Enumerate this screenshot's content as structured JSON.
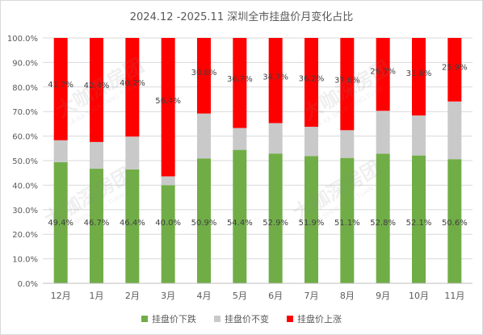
{
  "chart_data": {
    "type": "bar",
    "stacked": true,
    "title": "2024.12  -2025.11 深圳全市挂盘价月变化占比",
    "categories": [
      "12月",
      "1月",
      "2月",
      "3月",
      "4月",
      "5月",
      "6月",
      "7月",
      "8月",
      "9月",
      "10月",
      "11月"
    ],
    "series": [
      {
        "name": "挂盘价下跌",
        "color": "#70ad47",
        "values": [
          49.4,
          46.7,
          46.4,
          40.0,
          50.9,
          54.4,
          52.9,
          51.9,
          51.1,
          52.8,
          52.1,
          50.6
        ],
        "labels": [
          "49.4%",
          "46.7%",
          "46.4%",
          "40.0%",
          "50.9%",
          "54.4%",
          "52.9%",
          "51.9%",
          "51.1%",
          "52.8%",
          "52.1%",
          "50.6%"
        ]
      },
      {
        "name": "挂盘价不变",
        "color": "#c9c9c9",
        "values": [
          8.9,
          10.9,
          13.4,
          3.6,
          18.3,
          8.9,
          12.4,
          11.9,
          11.3,
          17.5,
          16.3,
          23.5
        ]
      },
      {
        "name": "挂盘价上涨",
        "color": "#ff0000",
        "values": [
          41.7,
          42.4,
          40.2,
          56.4,
          30.8,
          36.7,
          34.7,
          36.2,
          37.6,
          29.7,
          31.6,
          25.9
        ],
        "labels": [
          "41.7%",
          "42.4%",
          "40.2%",
          "56.4%",
          "30.8%",
          "36.7%",
          "34.7%",
          "36.2%",
          "37.6%",
          "29.7%",
          "31.6%",
          "25.9%"
        ]
      }
    ],
    "ylim": [
      0,
      100
    ],
    "yticks": [
      "0.0%",
      "10.0%",
      "20.0%",
      "30.0%",
      "40.0%",
      "50.0%",
      "60.0%",
      "70.0%",
      "80.0%",
      "90.0%",
      "100.0%"
    ],
    "grid": true,
    "legend": "bottom",
    "watermark": {
      "text": "大咖深房团",
      "subtext": "DA KA SHEN FANG TUAN"
    }
  }
}
